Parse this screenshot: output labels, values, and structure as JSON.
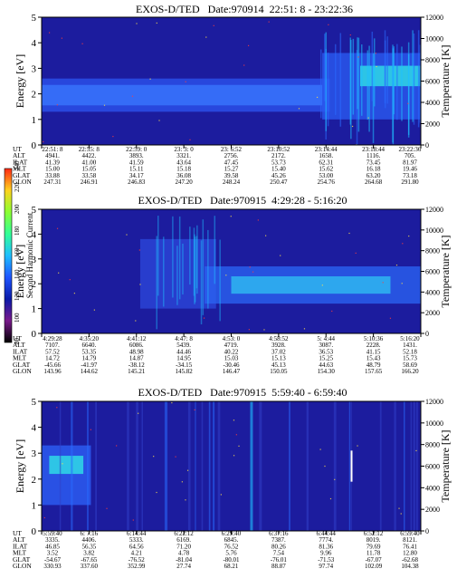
{
  "colorbar": {
    "label": "Second Harmonic Current",
    "ticks": [
      "80",
      "100",
      "120",
      "140",
      "160",
      "180",
      "200",
      "220",
      "240"
    ],
    "min": 80,
    "max": 240,
    "stops": [
      "#000000",
      "#7a1a8c",
      "#0a1aa8",
      "#1f55ff",
      "#1fbfff",
      "#32ff96",
      "#8cff32",
      "#ffd21e",
      "#ff2814"
    ]
  },
  "chart_data": [
    {
      "type": "heatmap",
      "title": "EXOS-D/TED   Date:970914  22:51: 8 - 23:22:36",
      "ylabel": "Energy [eV]",
      "ylabel_right": "Temperature [K]",
      "ylim": [
        0,
        5
      ],
      "ylim_right": [
        0,
        12000
      ],
      "yticks": [
        "0",
        "1",
        "2",
        "3",
        "4",
        "5"
      ],
      "yticks_right": [
        "0",
        "2000",
        "4000",
        "6000",
        "8000",
        "10000",
        "12000"
      ],
      "table": {
        "row_labels": [
          "UT",
          "ALT",
          "ILAT",
          "MLT",
          "GLAT",
          "GLON"
        ],
        "columns": [
          [
            "22:51: 8",
            "4941.",
            "41.39",
            "15.00",
            "33.88",
            "247.31"
          ],
          [
            "22:55: 8",
            "4422.",
            "41.00",
            "15.05",
            "33.58",
            "246.91"
          ],
          [
            "22:59: 0",
            "3893.",
            "41.59",
            "15.11",
            "34.17",
            "246.83"
          ],
          [
            "23: 3: 0",
            "3321.",
            "43.64",
            "15.18",
            "36.08",
            "247.20"
          ],
          [
            "23: 6:52",
            "2756.",
            "47.45",
            "15.27",
            "39.58",
            "248.24"
          ],
          [
            "23:10:52",
            "2172.",
            "53.73",
            "15.40",
            "45.26",
            "250.47"
          ],
          [
            "23:14:44",
            "1658.",
            "62.31",
            "15.62",
            "53.00",
            "254.76"
          ],
          [
            "23:18:44",
            "1116.",
            "73.45",
            "16.18",
            "63.20",
            "264.68"
          ],
          [
            "23:22:36",
            "705.",
            "81.97",
            "19.46",
            "73.18",
            "291.80"
          ]
        ]
      }
    },
    {
      "type": "heatmap",
      "title": "EXOS-D/TED   Date:970915  4:29:28 - 5:16:20",
      "ylabel": "Energy [eV]",
      "ylabel_right": "Temperature [K]",
      "ylim": [
        0,
        5
      ],
      "ylim_right": [
        0,
        12000
      ],
      "yticks": [
        "0",
        "1",
        "2",
        "3",
        "4",
        "5"
      ],
      "yticks_right": [
        "0",
        "2000",
        "4000",
        "6000",
        "8000",
        "10000",
        "12000"
      ],
      "table": {
        "row_labels": [
          "UT",
          "ALT",
          "ILAT",
          "MLT",
          "GLAT",
          "GLON"
        ],
        "columns": [
          [
            "4:29:28",
            "7107.",
            "57.52",
            "14.72",
            "-45.66",
            "143.96"
          ],
          [
            "4:35:20",
            "6640.",
            "53.35",
            "14.79",
            "-41.97",
            "144.62"
          ],
          [
            "4:41:12",
            "6086.",
            "48.98",
            "14.87",
            "-38.12",
            "145.21"
          ],
          [
            "4:47: 8",
            "5439.",
            "44.46",
            "14.95",
            "-34.15",
            "145.82"
          ],
          [
            "4:53: 0",
            "4719.",
            "40.22",
            "15.03",
            "-30.46",
            "146.47"
          ],
          [
            "4:58:52",
            "3928.",
            "37.02",
            "15.13",
            "45.13",
            "150.05"
          ],
          [
            "5: 4:44",
            "3087.",
            "36.53",
            "15.25",
            "44.63",
            "154.30"
          ],
          [
            "5:10:36",
            "2228.",
            "41.15",
            "15.43",
            "48.79",
            "157.65"
          ],
          [
            "5:16:20",
            "1431.",
            "52.18",
            "15.73",
            "58.69",
            "166.20"
          ]
        ]
      }
    },
    {
      "type": "heatmap",
      "title": "EXOS-D/TED   Date:970915  5:59:40 - 6:59:40",
      "ylabel": "Energy [eV]",
      "ylabel_right": "Temperature [K]",
      "ylim": [
        0,
        5
      ],
      "ylim_right": [
        0,
        12000
      ],
      "yticks": [
        "0",
        "1",
        "2",
        "3",
        "4",
        "5"
      ],
      "yticks_right": [
        "0",
        "2000",
        "4000",
        "6000",
        "8000",
        "10000",
        "12000"
      ],
      "table": {
        "row_labels": [
          "UT",
          "ALT",
          "ILAT",
          "MLT",
          "GLAT",
          "GLON"
        ],
        "columns": [
          [
            "5:59:40",
            "3335.",
            "46.85",
            "3.52",
            "-54.67",
            "330.93"
          ],
          [
            "6: 7:16",
            "4406.",
            "56.35",
            "3.82",
            "-67.65",
            "337.60"
          ],
          [
            "6:14:44",
            "5333.",
            "64.56",
            "4.21",
            "-76.52",
            "352.99"
          ],
          [
            "6:22:12",
            "6169.",
            "71.20",
            "4.78",
            "-81.04",
            "27.74"
          ],
          [
            "6:29:40",
            "6845.",
            "76.52",
            "5.76",
            "-80.01",
            "68.21"
          ],
          [
            "6:37:16",
            "7387.",
            "80.26",
            "7.54",
            "-76.01",
            "88.87"
          ],
          [
            "6:44:44",
            "7774.",
            "81.36",
            "9.96",
            "-71.53",
            "97.74"
          ],
          [
            "6:52:12",
            "8019.",
            "79.69",
            "11.78",
            "-67.07",
            "102.09"
          ],
          [
            "6:59:40",
            "8121.",
            "76.41",
            "12.80",
            "-62.68",
            "104.38"
          ]
        ]
      }
    }
  ]
}
